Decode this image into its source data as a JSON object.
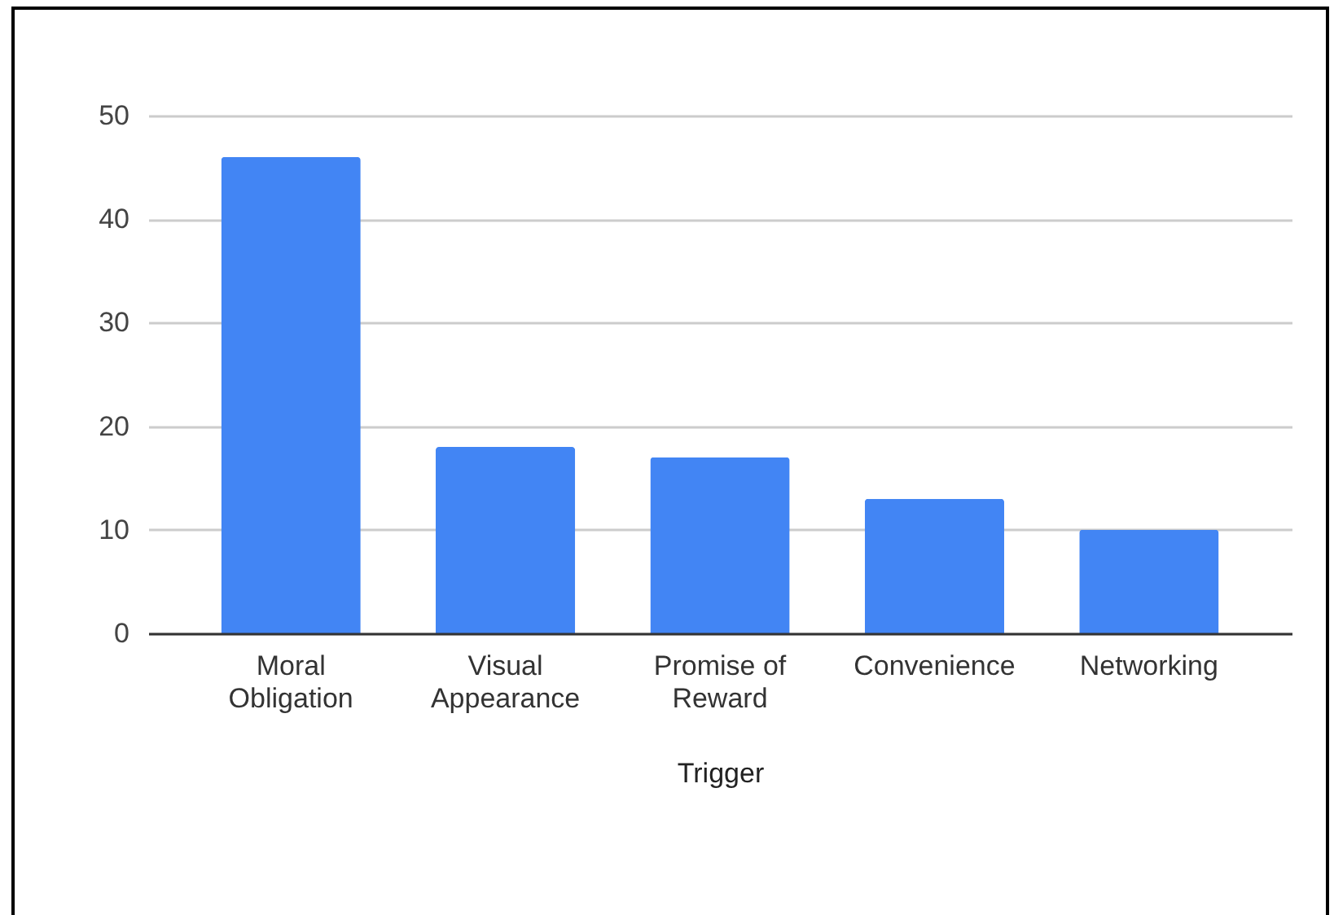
{
  "chart_data": {
    "type": "bar",
    "xlabel": "Trigger",
    "categories": [
      "Moral Obligation",
      "Visual Appearance",
      "Promise of Reward",
      "Convenience",
      "Networking"
    ],
    "values": [
      46,
      18,
      17,
      13,
      10
    ],
    "color": "#4285f4",
    "ylim": [
      0,
      50
    ],
    "yticks": [
      0,
      10,
      20,
      30,
      40,
      50
    ],
    "grid": "y"
  }
}
